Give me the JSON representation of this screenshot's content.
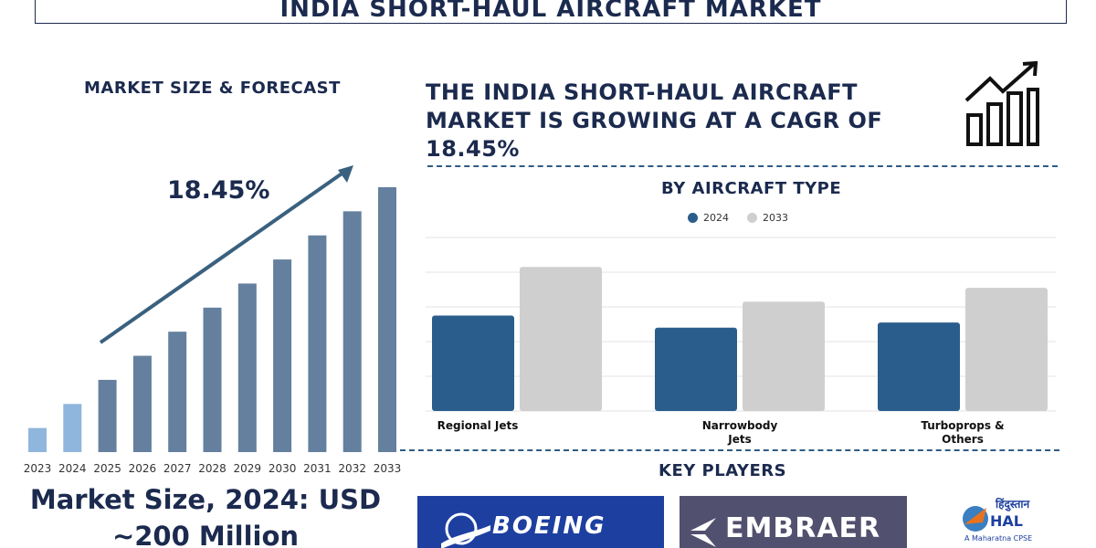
{
  "header": {
    "title": "INDIA SHORT-HAUL AIRCRAFT MARKET"
  },
  "forecast": {
    "title": "MARKET SIZE & FORECAST",
    "cagr_label": "18.45%",
    "market_size_line1": "Market Size, 2024: USD",
    "market_size_line2": "~200 Million"
  },
  "headline": {
    "line1": "THE INDIA SHORT-HAUL AIRCRAFT",
    "line2": "MARKET IS GROWING AT A CAGR OF",
    "line3": "18.45%"
  },
  "type_section": {
    "title": "BY AIRCRAFT TYPE"
  },
  "key_players": {
    "title": "KEY PLAYERS",
    "logos": [
      "BOEING",
      "EMBRAER",
      "HAL"
    ],
    "hal_script": "हिंदुस्तान",
    "hal_tagline": "A Maharatna CPSE"
  },
  "colors": {
    "navy": "#1b2a4e",
    "bar_light": "#8fb6dc",
    "bar_mid": "#64809e",
    "series_2024": "#2a5d8c",
    "series_2033": "#cfcfcf",
    "boeing_blue": "#1d3fa0",
    "embraer_gray": "#51506e",
    "hal_orange": "#e8731c"
  },
  "icons": [
    "trend-arrow-icon",
    "growth-chart-icon",
    "boeing-logo-icon",
    "embraer-logo-icon",
    "hal-logo-icon"
  ],
  "chart_data": [
    {
      "type": "bar",
      "categories": [
        "2023",
        "2024",
        "2025",
        "2026",
        "2027",
        "2028",
        "2029",
        "2030",
        "2031",
        "2032",
        "2033"
      ],
      "values": [
        1.0,
        2.0,
        3.0,
        4.0,
        5.0,
        6.0,
        7.0,
        8.0,
        9.0,
        10.0,
        11.0
      ],
      "ylim": [
        0,
        11
      ],
      "highlight_categories": [
        "2023",
        "2024"
      ],
      "annotation": "18.45%",
      "grid": false
    },
    {
      "type": "bar",
      "title": "BY AIRCRAFT TYPE",
      "categories": [
        "Regional Jets",
        "Narrowbody\nJets",
        "Turboprops &\nOthers"
      ],
      "series": [
        {
          "name": "2024",
          "values": [
            55,
            48,
            51
          ]
        },
        {
          "name": "2033",
          "values": [
            83,
            63,
            71
          ]
        }
      ],
      "ylim": [
        0,
        100
      ],
      "grid": true,
      "legend": "top-center"
    }
  ]
}
